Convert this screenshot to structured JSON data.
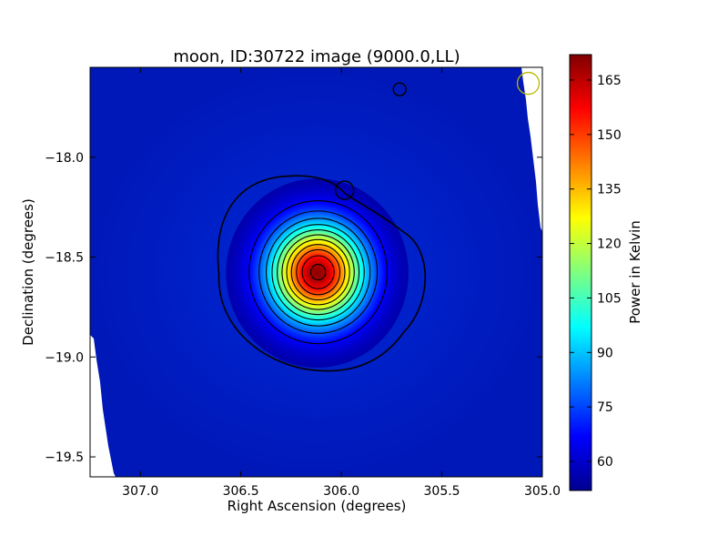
{
  "chart_data": {
    "type": "heatmap",
    "title": "moon, ID:30722 image (9000.0,LL)",
    "xlabel": "Right Ascension (degrees)",
    "ylabel": "Declination (degrees)",
    "xlim": [
      307.25,
      305.0
    ],
    "ylim": [
      -19.6,
      -17.55
    ],
    "xticks": [
      307.0,
      306.5,
      306.0,
      305.5,
      305.0
    ],
    "xtick_labels": [
      "307.0",
      "306.5",
      "306.0",
      "305.5",
      "305.0"
    ],
    "yticks": [
      -18.0,
      -18.5,
      -19.0,
      -19.5
    ],
    "ytick_labels": [
      "−18.0",
      "−18.5",
      "−19.0",
      "−19.5"
    ],
    "colorbar": {
      "label": "Power in Kelvin",
      "range": [
        52,
        172
      ],
      "ticks": [
        60,
        75,
        90,
        105,
        120,
        135,
        150,
        165
      ],
      "tick_labels": [
        "60",
        "75",
        "90",
        "105",
        "120",
        "135",
        "150",
        "165"
      ],
      "colormap": "jet"
    },
    "source": {
      "ra": 306.12,
      "dec": -18.58,
      "peak_power": 170,
      "background_power": 55
    },
    "secondary_feature": {
      "ra": 305.71,
      "dec": -17.66
    },
    "beam_marker": {
      "ra": 305.07,
      "dec": -17.63,
      "color": "#b8b800"
    },
    "contours": {
      "levels": [
        57,
        67,
        77,
        87,
        97,
        107,
        117,
        127,
        137,
        147,
        157,
        167
      ],
      "color": "#000000"
    },
    "grid": false
  }
}
